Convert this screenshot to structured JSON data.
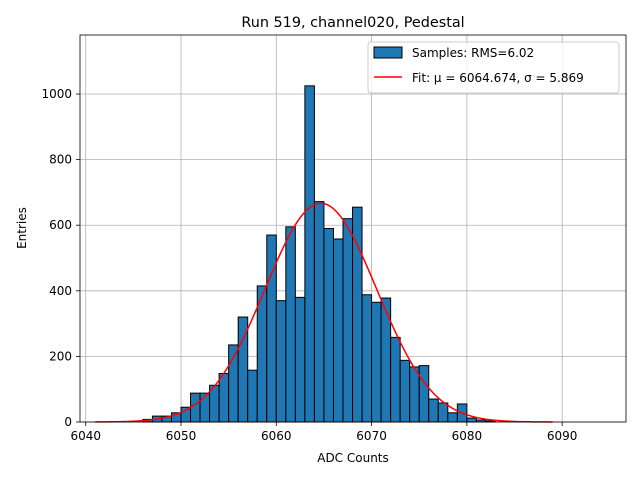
{
  "chart_data": {
    "type": "bar",
    "title": "Run 519, channel020, Pedestal",
    "xlabel": "ADC Counts",
    "ylabel": "Entries",
    "xlim": [
      6039.4,
      6096.7
    ],
    "ylim": [
      0,
      1180
    ],
    "xticks": [
      6040,
      6050,
      6060,
      6070,
      6080,
      6090
    ],
    "yticks": [
      0,
      200,
      400,
      600,
      800,
      1000
    ],
    "grid": true,
    "legend_position": "top-right",
    "bin_width": 1,
    "bins": [
      {
        "x": 6046,
        "y": 8
      },
      {
        "x": 6047,
        "y": 18
      },
      {
        "x": 6048,
        "y": 18
      },
      {
        "x": 6049,
        "y": 28
      },
      {
        "x": 6050,
        "y": 45
      },
      {
        "x": 6051,
        "y": 88
      },
      {
        "x": 6052,
        "y": 88
      },
      {
        "x": 6053,
        "y": 112
      },
      {
        "x": 6054,
        "y": 148
      },
      {
        "x": 6055,
        "y": 235
      },
      {
        "x": 6056,
        "y": 320
      },
      {
        "x": 6057,
        "y": 158
      },
      {
        "x": 6058,
        "y": 415
      },
      {
        "x": 6059,
        "y": 570
      },
      {
        "x": 6060,
        "y": 370
      },
      {
        "x": 6061,
        "y": 595
      },
      {
        "x": 6062,
        "y": 380
      },
      {
        "x": 6063,
        "y": 1025
      },
      {
        "x": 6064,
        "y": 672
      },
      {
        "x": 6065,
        "y": 590
      },
      {
        "x": 6066,
        "y": 558
      },
      {
        "x": 6067,
        "y": 620
      },
      {
        "x": 6068,
        "y": 655
      },
      {
        "x": 6069,
        "y": 388
      },
      {
        "x": 6070,
        "y": 365
      },
      {
        "x": 6071,
        "y": 378
      },
      {
        "x": 6072,
        "y": 258
      },
      {
        "x": 6073,
        "y": 188
      },
      {
        "x": 6074,
        "y": 168
      },
      {
        "x": 6075,
        "y": 172
      },
      {
        "x": 6076,
        "y": 70
      },
      {
        "x": 6077,
        "y": 58
      },
      {
        "x": 6078,
        "y": 28
      },
      {
        "x": 6079,
        "y": 55
      },
      {
        "x": 6080,
        "y": 12
      },
      {
        "x": 6081,
        "y": 6
      },
      {
        "x": 6082,
        "y": 3
      }
    ],
    "series": [
      {
        "type": "histogram",
        "name": "Samples: RMS=6.02",
        "color": "#1f77b4",
        "edgecolor": "#000000"
      },
      {
        "type": "line",
        "name": "Fit: μ = 6064.674, σ = 5.869",
        "color": "#ff0000",
        "function": "gaussian",
        "mu": 6064.674,
        "sigma": 5.869,
        "amplitude": 667,
        "x_range": [
          6041,
          6089
        ]
      }
    ]
  }
}
